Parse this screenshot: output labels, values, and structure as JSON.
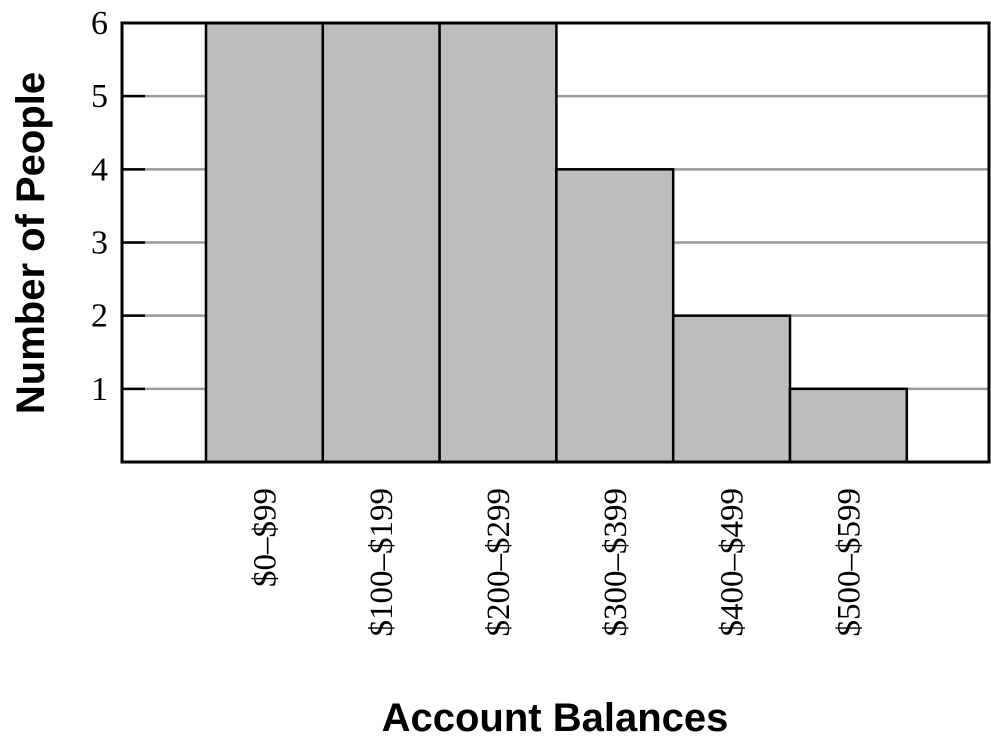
{
  "chart_data": {
    "type": "bar",
    "categories": [
      "$0–$99",
      "$100–$199",
      "$200–$299",
      "$300–$399",
      "$400–$499",
      "$500–$599"
    ],
    "values": [
      6,
      6,
      6,
      4,
      2,
      1
    ],
    "xlabel": "Account Balances",
    "ylabel": "Number of People",
    "ylim": [
      0,
      6
    ],
    "yticks": [
      1,
      2,
      3,
      4,
      5,
      6
    ],
    "grid": true,
    "bar_color": "#bdbdbd",
    "grid_color": "#9a9a9a"
  }
}
